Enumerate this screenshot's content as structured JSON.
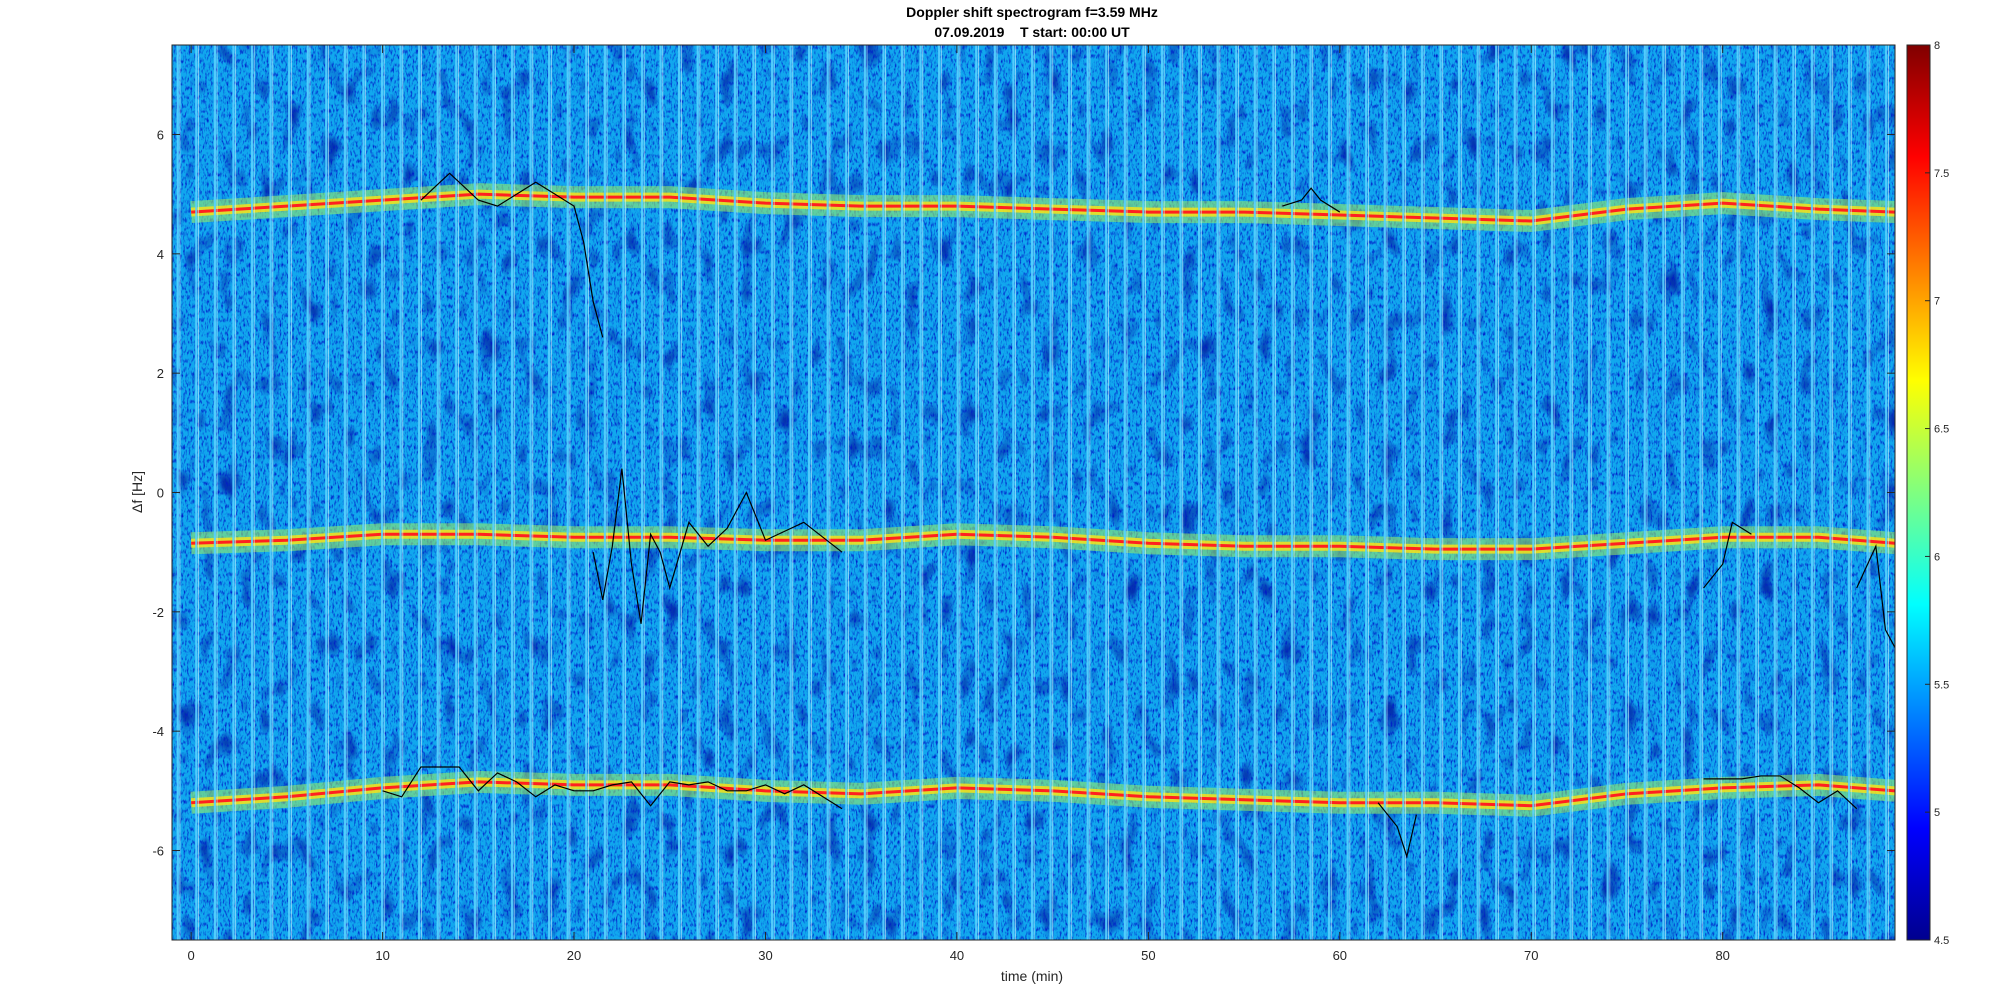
{
  "chart_data": {
    "type": "heatmap",
    "title": "Doppler shift spectrogram f=3.59 MHz",
    "subtitle": "07.09.2019    T start: 00:00 UT",
    "xlabel": "time (min)",
    "ylabel": "Δf [Hz]",
    "xlim": [
      -1,
      89
    ],
    "ylim": [
      -7.5,
      7.5
    ],
    "x_ticks": [
      0,
      10,
      20,
      30,
      40,
      50,
      60,
      70,
      80
    ],
    "y_ticks": [
      -6,
      -4,
      -2,
      0,
      2,
      4,
      6
    ],
    "colorbar": {
      "colormap": "jet",
      "clim": [
        4.5,
        8
      ],
      "ticks": [
        4.5,
        5,
        5.5,
        6,
        6.5,
        7,
        7.5,
        8
      ]
    },
    "grid": false,
    "spectral_lines": [
      {
        "x": [
          0,
          5,
          10,
          15,
          20,
          25,
          30,
          35,
          40,
          45,
          50,
          55,
          60,
          65,
          70,
          75,
          80,
          85,
          89
        ],
        "y": [
          4.7,
          4.8,
          4.9,
          5.0,
          4.95,
          4.95,
          4.85,
          4.8,
          4.8,
          4.75,
          4.7,
          4.7,
          4.65,
          4.6,
          4.55,
          4.75,
          4.85,
          4.75,
          4.7
        ]
      },
      {
        "x": [
          0,
          5,
          10,
          15,
          20,
          25,
          30,
          35,
          40,
          45,
          50,
          55,
          60,
          65,
          70,
          75,
          80,
          85,
          89
        ],
        "y": [
          -0.85,
          -0.8,
          -0.7,
          -0.7,
          -0.75,
          -0.75,
          -0.8,
          -0.8,
          -0.7,
          -0.75,
          -0.85,
          -0.9,
          -0.9,
          -0.95,
          -0.95,
          -0.85,
          -0.75,
          -0.75,
          -0.85
        ]
      },
      {
        "x": [
          0,
          5,
          10,
          15,
          20,
          25,
          30,
          35,
          40,
          45,
          50,
          55,
          60,
          65,
          70,
          75,
          80,
          85,
          89
        ],
        "y": [
          -5.2,
          -5.1,
          -4.95,
          -4.85,
          -4.9,
          -4.9,
          -5.0,
          -5.05,
          -4.95,
          -5.0,
          -5.1,
          -5.15,
          -5.2,
          -5.2,
          -5.25,
          -5.05,
          -4.95,
          -4.9,
          -5.0
        ]
      }
    ],
    "traces": [
      {
        "x": [
          10,
          11,
          12,
          13,
          14,
          15,
          16,
          17,
          18,
          19,
          20,
          21,
          22,
          23,
          24,
          25,
          26,
          27,
          28,
          29,
          30,
          31,
          32,
          33,
          34
        ],
        "y": [
          -5.0,
          -5.1,
          -4.6,
          -4.6,
          -4.6,
          -5.0,
          -4.7,
          -4.85,
          -5.1,
          -4.9,
          -5.0,
          -5.0,
          -4.9,
          -4.85,
          -5.25,
          -4.85,
          -4.9,
          -4.85,
          -5.0,
          -5.0,
          -4.9,
          -5.05,
          -4.9,
          -5.1,
          -5.3
        ]
      },
      {
        "x": [
          21,
          21.5,
          22,
          22.5,
          23,
          23.5,
          24,
          24.5,
          25,
          26,
          27,
          28,
          29,
          30,
          32,
          34
        ],
        "y": [
          -1.0,
          -1.8,
          -0.9,
          0.4,
          -1.2,
          -2.2,
          -0.7,
          -1.0,
          -1.6,
          -0.5,
          -0.9,
          -0.6,
          0.0,
          -0.8,
          -0.5,
          -1.0
        ]
      },
      {
        "x": [
          12,
          13,
          13.5,
          14,
          15,
          16,
          18,
          19,
          20,
          20.5,
          21,
          21.5
        ],
        "y": [
          4.9,
          5.2,
          5.35,
          5.2,
          4.9,
          4.8,
          5.2,
          5.0,
          4.8,
          4.2,
          3.2,
          2.6
        ]
      },
      {
        "x": [
          57,
          58,
          58.5,
          59,
          60
        ],
        "y": [
          4.8,
          4.9,
          5.1,
          4.9,
          4.7
        ]
      },
      {
        "x": [
          79,
          80,
          81,
          82,
          83,
          84,
          85,
          86,
          87
        ],
        "y": [
          -4.8,
          -4.8,
          -4.8,
          -4.75,
          -4.75,
          -4.95,
          -5.2,
          -5.0,
          -5.3
        ]
      },
      {
        "x": [
          79,
          80,
          80.5,
          81,
          81.5
        ],
        "y": [
          -1.6,
          -1.2,
          -0.5,
          -0.6,
          -0.7
        ]
      },
      {
        "x": [
          62,
          63,
          63.5,
          64
        ],
        "y": [
          -5.2,
          -5.6,
          -6.1,
          -5.4
        ]
      },
      {
        "x": [
          87,
          88,
          88.5,
          89
        ],
        "y": [
          -1.6,
          -0.9,
          -2.3,
          -2.6
        ]
      }
    ]
  }
}
